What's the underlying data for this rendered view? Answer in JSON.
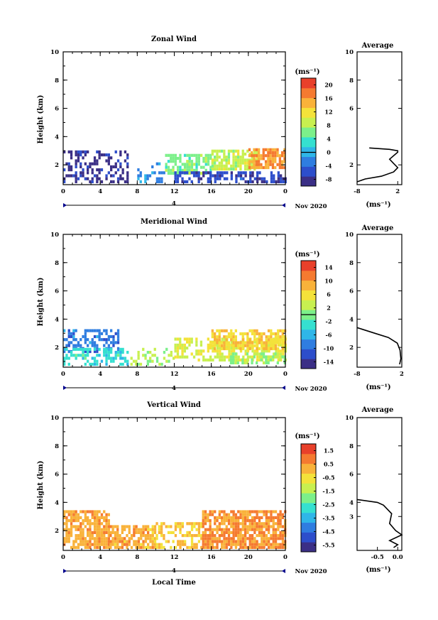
{
  "figure": {
    "xlabel": "Local Time",
    "date_label": "Nov 2020",
    "day_marker": "4",
    "unit_label": "(ms⁻¹)",
    "avg_title": "Average"
  },
  "chart_data": [
    {
      "type": "heatmap",
      "title": "Zonal Wind",
      "ylabel": "Height (km)",
      "xlabel": "",
      "x_ticks": [
        "0",
        "4",
        "8",
        "12",
        "16",
        "20",
        "0"
      ],
      "xlim": [
        0,
        24
      ],
      "y_ticks": [
        "2",
        "4",
        "6",
        "8",
        "10"
      ],
      "ylim": [
        0.6,
        10
      ],
      "colorbar": {
        "unit": "(ms⁻¹)",
        "ticks": [
          "-8",
          "-4",
          "0",
          "4",
          "8",
          "12",
          "16",
          "20"
        ],
        "range": [
          -10,
          22
        ],
        "zero_line": 0
      },
      "colors": [
        "#3b2f86",
        "#2d4ecb",
        "#2f7de0",
        "#2fb6e8",
        "#35e0d0",
        "#7cf08a",
        "#c8f050",
        "#f4e23a",
        "#f9b23a",
        "#f57a30",
        "#e8402a"
      ],
      "regions": [
        {
          "x": [
            0,
            7
          ],
          "y": [
            0.7,
            3.0
          ],
          "value": -8,
          "density": 0.45
        },
        {
          "x": [
            8,
            11
          ],
          "y": [
            0.7,
            2.0
          ],
          "value": -2,
          "density": 0.35
        },
        {
          "x": [
            11,
            16
          ],
          "y": [
            1.3,
            2.6
          ],
          "value": 6,
          "density": 0.7
        },
        {
          "x": [
            16,
            21
          ],
          "y": [
            1.6,
            3.0
          ],
          "value": 9,
          "density": 0.8
        },
        {
          "x": [
            20,
            24
          ],
          "y": [
            1.7,
            3.1
          ],
          "value": 16,
          "density": 0.8
        },
        {
          "x": [
            12,
            24
          ],
          "y": [
            0.7,
            1.4
          ],
          "value": -6,
          "density": 0.6
        }
      ],
      "average": {
        "xlim": [
          -8,
          3
        ],
        "x_ticks": [
          "-8",
          "2"
        ],
        "y_ticks": [
          "2",
          "6",
          "8",
          "10"
        ],
        "xlabel": "(ms⁻¹)",
        "profile": [
          [
            -8,
            0.8
          ],
          [
            -6,
            1.0
          ],
          [
            -2,
            1.2
          ],
          [
            1,
            1.5
          ],
          [
            2,
            1.8
          ],
          [
            1,
            2.1
          ],
          [
            0,
            2.4
          ],
          [
            2,
            2.9
          ],
          [
            2,
            3.0
          ],
          [
            0,
            3.1
          ],
          [
            -5,
            3.2
          ]
        ]
      }
    },
    {
      "type": "heatmap",
      "title": "Meridional Wind",
      "ylabel": "Height (km)",
      "xlabel": "",
      "x_ticks": [
        "0",
        "4",
        "8",
        "12",
        "16",
        "20",
        "0"
      ],
      "xlim": [
        0,
        24
      ],
      "y_ticks": [
        "2",
        "4",
        "6",
        "8",
        "10"
      ],
      "ylim": [
        0.6,
        10
      ],
      "colorbar": {
        "unit": "(ms⁻¹)",
        "ticks": [
          "-14",
          "-10",
          "-6",
          "-2",
          "2",
          "6",
          "10",
          "14"
        ],
        "range": [
          -16,
          16
        ],
        "zero_line": 0
      },
      "colors": [
        "#3b2f86",
        "#2d4ecb",
        "#2f7de0",
        "#2fb6e8",
        "#35e0d0",
        "#7cf08a",
        "#c8f050",
        "#f4e23a",
        "#f9b23a",
        "#f57a30",
        "#e8402a"
      ],
      "regions": [
        {
          "x": [
            0,
            6
          ],
          "y": [
            1.6,
            3.2
          ],
          "value": -9,
          "density": 0.6
        },
        {
          "x": [
            0,
            7
          ],
          "y": [
            0.7,
            1.8
          ],
          "value": -3,
          "density": 0.5
        },
        {
          "x": [
            7,
            12
          ],
          "y": [
            0.7,
            1.9
          ],
          "value": 2,
          "density": 0.3
        },
        {
          "x": [
            12,
            24
          ],
          "y": [
            1.0,
            2.6
          ],
          "value": 4,
          "density": 0.6
        },
        {
          "x": [
            16,
            24
          ],
          "y": [
            1.8,
            3.1
          ],
          "value": 7,
          "density": 0.7
        },
        {
          "x": [
            18,
            24
          ],
          "y": [
            0.8,
            1.6
          ],
          "value": 1,
          "density": 0.5
        }
      ],
      "average": {
        "xlim": [
          -8,
          2
        ],
        "x_ticks": [
          "-8",
          "2"
        ],
        "y_ticks": [
          "2",
          "4",
          "6",
          "8",
          "10"
        ],
        "xlabel": "(ms⁻¹)",
        "profile": [
          [
            1.5,
            0.8
          ],
          [
            1.8,
            1.2
          ],
          [
            1.6,
            1.8
          ],
          [
            1.0,
            2.3
          ],
          [
            -1,
            2.7
          ],
          [
            -4,
            3.0
          ],
          [
            -7,
            3.3
          ],
          [
            -8,
            3.4
          ]
        ]
      }
    },
    {
      "type": "heatmap",
      "title": "Vertical Wind",
      "ylabel": "Height (km)",
      "xlabel": "Local Time",
      "x_ticks": [
        "0",
        "4",
        "8",
        "12",
        "16",
        "20",
        "0"
      ],
      "xlim": [
        0,
        24
      ],
      "y_ticks": [
        "2",
        "4",
        "6",
        "8",
        "10"
      ],
      "ylim": [
        0.6,
        10
      ],
      "colorbar": {
        "unit": "(ms⁻¹)",
        "ticks": [
          "-5.5",
          "-4.5",
          "-3.5",
          "-2.5",
          "-1.5",
          "-0.5",
          "0.5",
          "1.5"
        ],
        "range": [
          -6,
          2
        ],
        "zero_line": null
      },
      "colors": [
        "#3b2f86",
        "#2d4ecb",
        "#2f7de0",
        "#2fb6e8",
        "#35e0d0",
        "#7cf08a",
        "#c8f050",
        "#f4e23a",
        "#f9b23a",
        "#f57a30",
        "#e8402a"
      ],
      "regions": [
        {
          "x": [
            0,
            5
          ],
          "y": [
            0.7,
            3.4
          ],
          "value": 0.3,
          "density": 0.8
        },
        {
          "x": [
            5,
            10
          ],
          "y": [
            0.7,
            2.3
          ],
          "value": 0.2,
          "density": 0.7
        },
        {
          "x": [
            10,
            15
          ],
          "y": [
            0.7,
            2.4
          ],
          "value": -0.2,
          "density": 0.55
        },
        {
          "x": [
            15,
            24
          ],
          "y": [
            0.7,
            3.3
          ],
          "value": 0.6,
          "density": 0.8
        }
      ],
      "average": {
        "xlim": [
          -1,
          0.1
        ],
        "x_ticks": [
          "-0.5",
          "0.0"
        ],
        "y_ticks": [
          "3",
          "4",
          "6",
          "8",
          "10"
        ],
        "xlabel": "(ms⁻¹)",
        "profile": [
          [
            -0.1,
            0.8
          ],
          [
            0.0,
            1.0
          ],
          [
            -0.2,
            1.3
          ],
          [
            0.1,
            1.7
          ],
          [
            -0.05,
            2.0
          ],
          [
            -0.2,
            2.5
          ],
          [
            -0.15,
            3.2
          ],
          [
            -0.35,
            3.8
          ],
          [
            -0.5,
            4.0
          ],
          [
            -1.0,
            4.2
          ]
        ]
      }
    }
  ]
}
